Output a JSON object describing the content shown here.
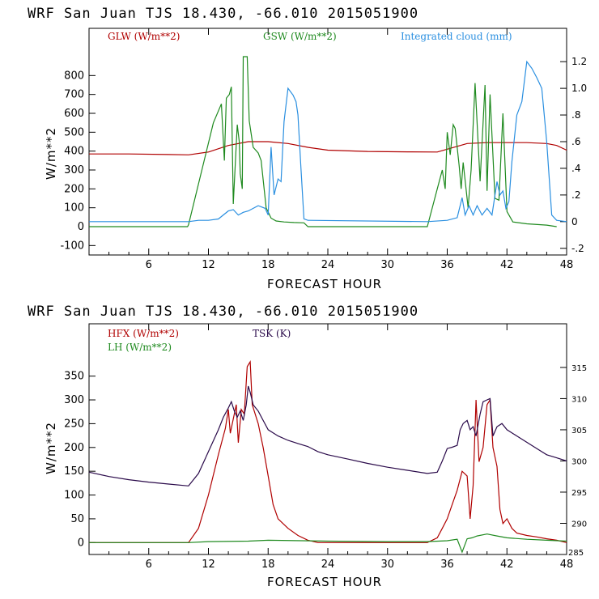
{
  "colors": {
    "red": "#b00000",
    "green": "#1f8a1f",
    "blue": "#2a8fe0",
    "purple": "#2a0a4a",
    "black": "#000000"
  },
  "chart_data": [
    {
      "type": "line",
      "header": "WRF  San Juan TJS  18.430, -66.010  2015051900",
      "xlabel": "FORECAST HOUR",
      "ylabel": "W/m**2",
      "xlim": [
        0,
        48
      ],
      "ylim": [
        -150,
        1050
      ],
      "xticks": [
        "6",
        "12",
        "18",
        "24",
        "30",
        "36",
        "42",
        "48"
      ],
      "yticks": [
        "-100",
        "0",
        "100",
        "200",
        "300",
        "400",
        "500",
        "600",
        "700",
        "800"
      ],
      "y2lim": [
        -0.25,
        1.45
      ],
      "y2ticks": [
        "-.2",
        "0",
        ".2",
        ".4",
        ".6",
        ".8",
        "1.0",
        "1.2"
      ],
      "series": [
        {
          "name": "GLW (W/m**2)",
          "axis": "left",
          "color_key": "red",
          "x": [
            0,
            4,
            8,
            10,
            12,
            14,
            16,
            18,
            20,
            22,
            24,
            28,
            32,
            35,
            36,
            38,
            40,
            42,
            44,
            46,
            47,
            48
          ],
          "values": [
            385,
            385,
            382,
            380,
            395,
            430,
            450,
            450,
            440,
            420,
            405,
            398,
            396,
            395,
            410,
            440,
            445,
            445,
            445,
            440,
            430,
            405
          ]
        },
        {
          "name": "GSW (W/m**2)",
          "axis": "left",
          "color_key": "green",
          "x": [
            0,
            9.9,
            10,
            12.5,
            13.3,
            13.6,
            13.8,
            14.1,
            14.3,
            14.5,
            14.9,
            15.1,
            15.2,
            15.4,
            15.5,
            15.9,
            16.1,
            16.5,
            17.0,
            17.3,
            17.6,
            17.8,
            18.3,
            18.8,
            19.6,
            20.6,
            21.6,
            22.0,
            34.0,
            35.0,
            35.5,
            35.8,
            36.0,
            36.3,
            36.6,
            36.8,
            37.2,
            37.4,
            37.6,
            38.1,
            38.4,
            38.8,
            39.3,
            39.8,
            40.0,
            40.3,
            40.8,
            41.2,
            41.6,
            42.0,
            42.6,
            44.0,
            46.0,
            47.0
          ],
          "values": [
            0,
            0,
            10,
            550,
            650,
            350,
            680,
            700,
            740,
            120,
            540,
            450,
            280,
            200,
            900,
            900,
            560,
            420,
            390,
            350,
            200,
            100,
            45,
            30,
            25,
            22,
            20,
            0,
            0,
            200,
            300,
            200,
            500,
            380,
            540,
            520,
            320,
            200,
            340,
            100,
            300,
            760,
            240,
            750,
            190,
            700,
            150,
            140,
            600,
            80,
            25,
            15,
            8,
            0
          ]
        },
        {
          "name": "Integrated cloud (mm)",
          "axis": "right",
          "color_key": "blue",
          "x": [
            0,
            10,
            11,
            12,
            13,
            14,
            14.5,
            15,
            15.5,
            16,
            17,
            17.7,
            18,
            18.3,
            18.6,
            19.0,
            19.3,
            19.6,
            20.0,
            20.5,
            20.8,
            21.0,
            21.3,
            21.6,
            22,
            34,
            36,
            37,
            37.5,
            37.8,
            38.2,
            38.6,
            39,
            39.5,
            40,
            40.5,
            41,
            41.3,
            41.6,
            41.9,
            42.2,
            42.5,
            43,
            43.5,
            44,
            44.5,
            45,
            45.5,
            46,
            46.5,
            47,
            48
          ],
          "values": [
            0,
            0,
            0.01,
            0.01,
            0.02,
            0.08,
            0.09,
            0.05,
            0.07,
            0.08,
            0.12,
            0.1,
            0.05,
            0.56,
            0.2,
            0.32,
            0.3,
            0.75,
            1.0,
            0.95,
            0.9,
            0.8,
            0.4,
            0.02,
            0.01,
            0,
            0.01,
            0.03,
            0.18,
            0.05,
            0.12,
            0.05,
            0.12,
            0.05,
            0.1,
            0.05,
            0.3,
            0.2,
            0.23,
            0.1,
            0.15,
            0.45,
            0.8,
            0.9,
            1.2,
            1.15,
            1.08,
            1.0,
            0.6,
            0.05,
            0.01,
            0
          ]
        }
      ],
      "legend": [
        "GLW (W/m**2)",
        "GSW (W/m**2)",
        "Integrated cloud (mm)"
      ]
    },
    {
      "type": "line",
      "header": "WRF  San Juan TJS  18.430, -66.010  2015051900",
      "xlabel": "FORECAST HOUR",
      "ylabel": "W/m**2",
      "xlim": [
        0,
        48
      ],
      "ylim": [
        -25,
        460
      ],
      "xticks": [
        "6",
        "12",
        "18",
        "24",
        "30",
        "36",
        "42",
        "48"
      ],
      "yticks": [
        "0",
        "50",
        "100",
        "150",
        "200",
        "250",
        "300",
        "350"
      ],
      "y2lim": [
        285,
        322
      ],
      "y2ticks": [
        "290",
        "295",
        "300",
        "305",
        "310",
        "315"
      ],
      "y2label_extra": "285",
      "series": [
        {
          "name": "HFX (W/m**2)",
          "axis": "left",
          "color_key": "red",
          "x": [
            0,
            10,
            11,
            12,
            13,
            13.7,
            14,
            14.2,
            14.5,
            14.8,
            15,
            15.3,
            15.6,
            15.9,
            16.2,
            16.4,
            17,
            17.5,
            18,
            18.5,
            19,
            20,
            21,
            22,
            23,
            34,
            35,
            35.5,
            36,
            36.5,
            37,
            37.5,
            38,
            38.3,
            38.6,
            38.9,
            39.2,
            39.6,
            40.0,
            40.3,
            40.6,
            41,
            41.3,
            41.6,
            42,
            42.5,
            43,
            44,
            45,
            46,
            47,
            48
          ],
          "values": [
            0,
            0,
            30,
            100,
            185,
            240,
            280,
            230,
            260,
            290,
            210,
            280,
            270,
            370,
            380,
            290,
            250,
            200,
            140,
            80,
            50,
            30,
            15,
            5,
            0,
            0,
            10,
            30,
            50,
            80,
            110,
            150,
            140,
            50,
            120,
            300,
            170,
            200,
            290,
            300,
            200,
            160,
            70,
            40,
            50,
            30,
            20,
            15,
            12,
            8,
            5,
            0
          ]
        },
        {
          "name": "LH (W/m**2)",
          "axis": "left",
          "color_key": "green",
          "x": [
            0,
            10,
            12,
            16,
            18,
            24,
            30,
            34,
            36,
            37,
            37.5,
            38,
            38.5,
            39,
            40,
            41,
            42,
            44,
            46,
            48
          ],
          "values": [
            0,
            0,
            2,
            3,
            5,
            3,
            2,
            2,
            4,
            7,
            -20,
            8,
            10,
            14,
            18,
            14,
            10,
            7,
            5,
            3
          ]
        },
        {
          "name": "TSK (K)",
          "axis": "right",
          "color_key": "purple",
          "x": [
            0,
            2,
            4,
            6,
            8,
            10,
            11,
            12,
            13,
            13.5,
            14,
            14.3,
            14.6,
            14.9,
            15.2,
            15.5,
            15.8,
            16.0,
            16.2,
            16.5,
            17,
            17.5,
            18,
            18.5,
            19,
            20,
            21,
            22,
            23,
            24,
            26,
            28,
            30,
            32,
            34,
            35,
            35.5,
            36,
            36.5,
            37,
            37.3,
            37.6,
            38,
            38.3,
            38.6,
            38.9,
            39.3,
            39.6,
            40,
            40.3,
            40.6,
            41,
            41.5,
            42,
            43,
            44,
            45,
            46,
            47,
            48
          ],
          "values": [
            298.2,
            297.5,
            297,
            296.6,
            296.3,
            296,
            298,
            301.5,
            305,
            307,
            308.5,
            309.5,
            308,
            307,
            308,
            306.5,
            309,
            312,
            311,
            309,
            308,
            306.5,
            305,
            304.5,
            304,
            303.3,
            302.8,
            302.3,
            301.5,
            301,
            300.3,
            299.6,
            299,
            298.5,
            298,
            298.2,
            300,
            302,
            302.2,
            302.5,
            305,
            306,
            306.5,
            305,
            305.5,
            304,
            307.5,
            309.5,
            309.8,
            310,
            304,
            305.5,
            306,
            305,
            304,
            303,
            302,
            301,
            300.5,
            300
          ]
        }
      ],
      "legend": [
        "HFX (W/m**2)",
        "LH (W/m**2)",
        "TSK (K)"
      ]
    }
  ]
}
